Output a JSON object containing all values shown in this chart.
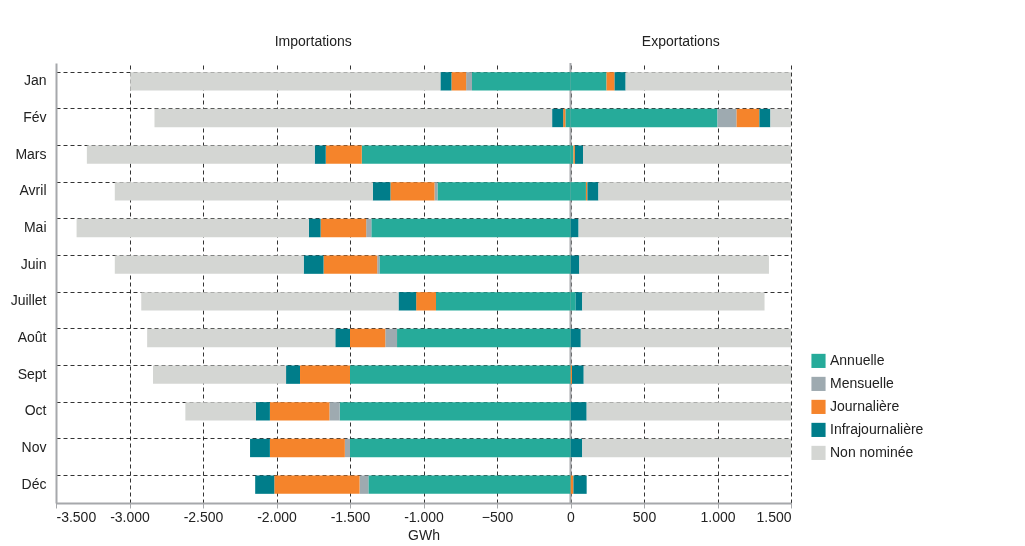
{
  "chart_data": {
    "type": "bar",
    "orientation": "horizontal",
    "stacked": true,
    "categories": [
      "Jan",
      "Fév",
      "Mars",
      "Avril",
      "Mai",
      "Juin",
      "Juillet",
      "Août",
      "Sept",
      "Oct",
      "Nov",
      "Déc"
    ],
    "series": [
      {
        "name": "Annuelle",
        "color": "#26ab9a",
        "values": [
          245,
          1000,
          20,
          105,
          0,
          0,
          35,
          0,
          0,
          0,
          0,
          0
        ]
      },
      {
        "name": "Mensuelle",
        "color": "#9eaab0",
        "values": [
          0,
          130,
          0,
          0,
          0,
          0,
          0,
          0,
          0,
          0,
          0,
          0
        ]
      },
      {
        "name": "Journalière",
        "color": "#f5842b",
        "values": [
          55,
          155,
          10,
          10,
          0,
          0,
          0,
          0,
          10,
          0,
          0,
          20
        ]
      },
      {
        "name": "Infrajournalière",
        "color": "#007d8a",
        "values": [
          75,
          75,
          55,
          75,
          55,
          60,
          45,
          70,
          80,
          110,
          80,
          90
        ]
      },
      {
        "name": "Non nominée",
        "color": "#d4d6d3",
        "values": [
          1125,
          140,
          1415,
          1310,
          1445,
          1290,
          1240,
          1430,
          1410,
          1390,
          1420,
          0
        ]
      },
      {
        "color": "#26ab9a",
        "values": [
          -670,
          -35,
          -1420,
          -905,
          -1355,
          -1300,
          -915,
          -1180,
          -1500,
          -1570,
          -1500,
          -1375
        ]
      },
      {
        "color": "#9eaab0",
        "values": [
          -40,
          0,
          0,
          -20,
          -35,
          -15,
          0,
          -80,
          0,
          -70,
          -35,
          -60
        ]
      },
      {
        "color": "#f5842b",
        "values": [
          -100,
          -15,
          -245,
          -300,
          -310,
          -365,
          -135,
          -240,
          -340,
          -405,
          -510,
          -580
        ]
      },
      {
        "color": "#007d8a",
        "values": [
          -75,
          -75,
          -75,
          -120,
          -80,
          -135,
          -120,
          -100,
          -95,
          -95,
          -135,
          -130
        ]
      },
      {
        "color": "#d4d6d3",
        "values": [
          -2110,
          -2705,
          -1550,
          -1755,
          -1580,
          -1285,
          -1750,
          -1280,
          -905,
          -480,
          0,
          0
        ]
      }
    ],
    "xlabel": "GWh",
    "xlim": [
      -3500,
      1500
    ],
    "xticks": [
      {
        "value": -3500,
        "label": "-3.500"
      },
      {
        "value": -3000,
        "label": "-3.000"
      },
      {
        "value": -2500,
        "label": "-2.500"
      },
      {
        "value": -2000,
        "label": "-2.000"
      },
      {
        "value": -1500,
        "label": "-1.500"
      },
      {
        "value": -1000,
        "label": "-1.000"
      },
      -500,
      0,
      500,
      {
        "value": 1000,
        "label": "1.000"
      },
      {
        "value": 1500,
        "label": "1.500"
      }
    ],
    "annotations": [
      "Importations",
      "Exportations"
    ],
    "ref_lines": [
      {
        "axis": "x",
        "value": 0,
        "color": "#a6a8ab"
      }
    ],
    "grid": true,
    "legend": "right"
  }
}
